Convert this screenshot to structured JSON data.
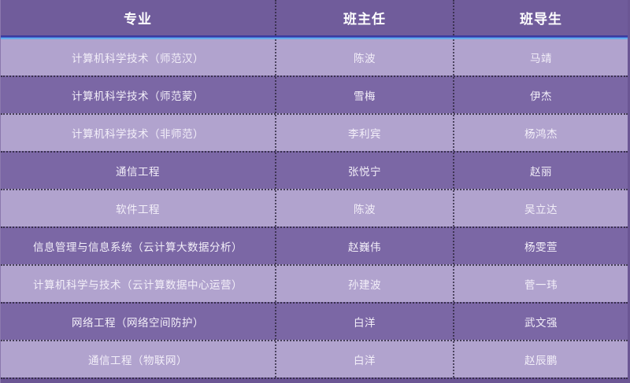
{
  "table": {
    "headers": [
      {
        "label": "专业"
      },
      {
        "label": "班主任"
      },
      {
        "label": "班导生"
      }
    ],
    "rows": [
      {
        "major": "计算机科学技术（师范汉）",
        "head_teacher": "陈波",
        "mentor": "马靖"
      },
      {
        "major": "计算机科学技术（师范蒙）",
        "head_teacher": "雪梅",
        "mentor": "伊杰"
      },
      {
        "major": "计算机科学技术（非师范）",
        "head_teacher": "李利宾",
        "mentor": "杨鸿杰"
      },
      {
        "major": "通信工程",
        "head_teacher": "张悦宁",
        "mentor": "赵丽"
      },
      {
        "major": "软件工程",
        "head_teacher": "陈波",
        "mentor": "吴立达"
      },
      {
        "major": "信息管理与信息系统（云计算大数据分析）",
        "head_teacher": "赵巍伟",
        "mentor": "杨雯萱"
      },
      {
        "major": "计算机科学与技术（云计算数据中心运营）",
        "head_teacher": "孙建波",
        "mentor": "菅一玮"
      },
      {
        "major": "网络工程（网络空间防护）",
        "head_teacher": "白洋",
        "mentor": "武文强"
      },
      {
        "major": "通信工程（物联网）",
        "head_teacher": "白洋",
        "mentor": "赵辰鹏"
      }
    ]
  },
  "colors": {
    "header_bg": "#705C9B",
    "row_dark": "#7B67A5",
    "row_light": "#B1A3CE",
    "frame": "#6B5694",
    "divider_blue_dark": "#3C3B9E",
    "divider_blue_mid": "#3E62CE",
    "divider_blue_light": "#68ACE8",
    "header_text": "#FFFFFF",
    "cell_text": "#F3EFF9"
  }
}
